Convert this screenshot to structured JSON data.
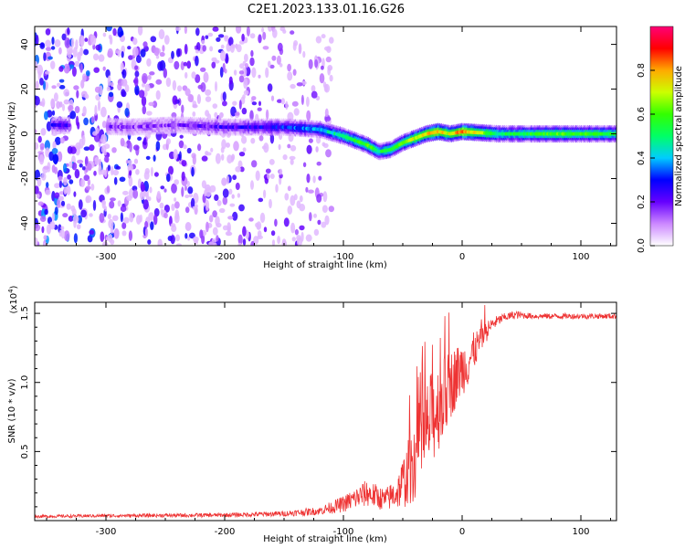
{
  "figure": {
    "title": "C2E1.2023.133.01.16.G26"
  },
  "chart_data": [
    {
      "type": "heatmap",
      "xlabel": "Height of straight line (km)",
      "ylabel": "Frequency (Hz)",
      "xlim": [
        -360,
        130
      ],
      "ylim": [
        -50,
        48
      ],
      "x_ticks": [
        -300,
        -200,
        -100,
        0,
        100
      ],
      "y_ticks": [
        -40,
        -20,
        0,
        20,
        40
      ],
      "noise_region": {
        "x": [
          -360,
          -110
        ],
        "y": [
          -50,
          48
        ],
        "amplitude_range": [
          0.0,
          0.4
        ]
      },
      "ridge": [
        {
          "x": -345,
          "y": 4,
          "amp": 0.25
        },
        {
          "x": -280,
          "y": 3,
          "amp": 0.15
        },
        {
          "x": -240,
          "y": 4,
          "amp": 0.15
        },
        {
          "x": -200,
          "y": 3,
          "amp": 0.22
        },
        {
          "x": -150,
          "y": 3,
          "amp": 0.3
        },
        {
          "x": -120,
          "y": 2,
          "amp": 0.4
        },
        {
          "x": -100,
          "y": -1,
          "amp": 0.5
        },
        {
          "x": -80,
          "y": -5,
          "amp": 0.6
        },
        {
          "x": -70,
          "y": -8,
          "amp": 0.5
        },
        {
          "x": -60,
          "y": -7,
          "amp": 0.55
        },
        {
          "x": -50,
          "y": -4,
          "amp": 0.6
        },
        {
          "x": -40,
          "y": -2,
          "amp": 0.7
        },
        {
          "x": -30,
          "y": 0,
          "amp": 0.75
        },
        {
          "x": -20,
          "y": 1,
          "amp": 0.8
        },
        {
          "x": -10,
          "y": 0,
          "amp": 0.7
        },
        {
          "x": 0,
          "y": 1,
          "amp": 0.85
        },
        {
          "x": 30,
          "y": 0,
          "amp": 0.5
        },
        {
          "x": 80,
          "y": 0,
          "amp": 0.6
        },
        {
          "x": 130,
          "y": 0,
          "amp": 0.55
        }
      ],
      "colorbar": {
        "label": "Normalized spectral amplitude",
        "range": [
          0.0,
          1.0
        ],
        "ticks": [
          0.0,
          0.2,
          0.4,
          0.6,
          0.8
        ],
        "tick_labels": [
          "0.0",
          "0.2",
          "0.4",
          "0.6",
          "0.8"
        ]
      },
      "grid": false
    },
    {
      "type": "line",
      "xlabel": "Height of straight line (km)",
      "ylabel": "SNR (10 * v/v)",
      "y_multiplier": "(x10",
      "y_multiplier_exp": "4",
      "y_multiplier_close": ")",
      "xlim": [
        -360,
        130
      ],
      "ylim": [
        0,
        1.58
      ],
      "x_ticks": [
        -300,
        -200,
        -100,
        0,
        100
      ],
      "y_ticks": [
        0.5,
        1.0,
        1.5
      ],
      "y_tick_labels": [
        "0.5",
        "1.0",
        "1.5"
      ],
      "color": "#ee3333",
      "series": [
        {
          "x": [
            -360,
            -300,
            -200,
            -150,
            -120,
            -100,
            -80,
            -65,
            -55,
            -45,
            -35,
            -25,
            -15,
            -5,
            5,
            15,
            25,
            35,
            45,
            60,
            80,
            100,
            130
          ],
          "y": [
            0.03,
            0.035,
            0.04,
            0.05,
            0.07,
            0.12,
            0.2,
            0.15,
            0.2,
            0.35,
            0.55,
            0.75,
            0.9,
            1.05,
            1.15,
            1.3,
            1.42,
            1.47,
            1.49,
            1.48,
            1.48,
            1.48,
            1.48
          ],
          "noise": [
            0.01,
            0.012,
            0.015,
            0.02,
            0.03,
            0.06,
            0.1,
            0.08,
            0.12,
            0.25,
            0.35,
            0.35,
            0.3,
            0.22,
            0.18,
            0.1,
            0.05,
            0.03,
            0.03,
            0.02,
            0.02,
            0.02,
            0.02
          ]
        }
      ],
      "grid": false
    }
  ]
}
